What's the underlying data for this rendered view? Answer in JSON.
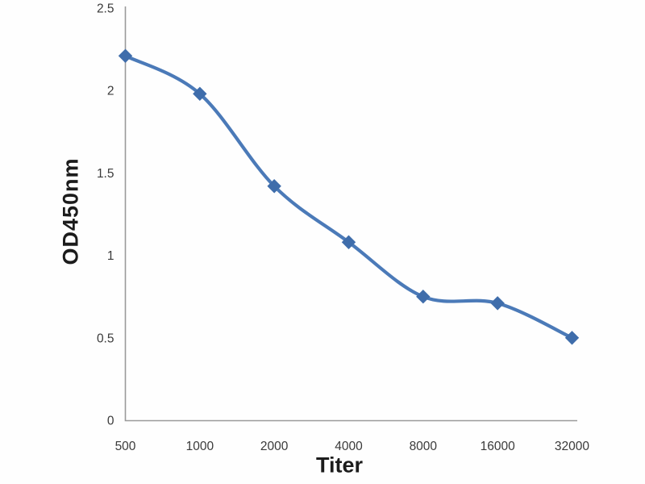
{
  "chart_data": {
    "type": "line",
    "title": "",
    "categories": [
      "500",
      "1000",
      "2000",
      "4000",
      "8000",
      "16000",
      "32000"
    ],
    "series": [
      {
        "name": "OD450nm",
        "values": [
          2.21,
          1.98,
          1.42,
          1.08,
          0.75,
          0.71,
          0.5
        ]
      }
    ],
    "xlabel": "Titer",
    "ylabel": "OD450nm",
    "ylim": [
      0,
      2.5
    ],
    "y_ticks": [
      0,
      0.5,
      1,
      1.5,
      2,
      2.5
    ],
    "y_tick_labels": [
      "0",
      "0.5",
      "1",
      "1.5",
      "2",
      "2.5"
    ],
    "grid": false,
    "legend_position": "none",
    "line_style": "smooth",
    "marker_shape": "diamond",
    "colors": {
      "line": "#4b7ab8",
      "marker": "#3f6dab",
      "axis": "#9a9a9a",
      "tick_text": "#3a3a3a",
      "axis_title_text": "#1c1c1c",
      "background": "#fefefe"
    }
  }
}
